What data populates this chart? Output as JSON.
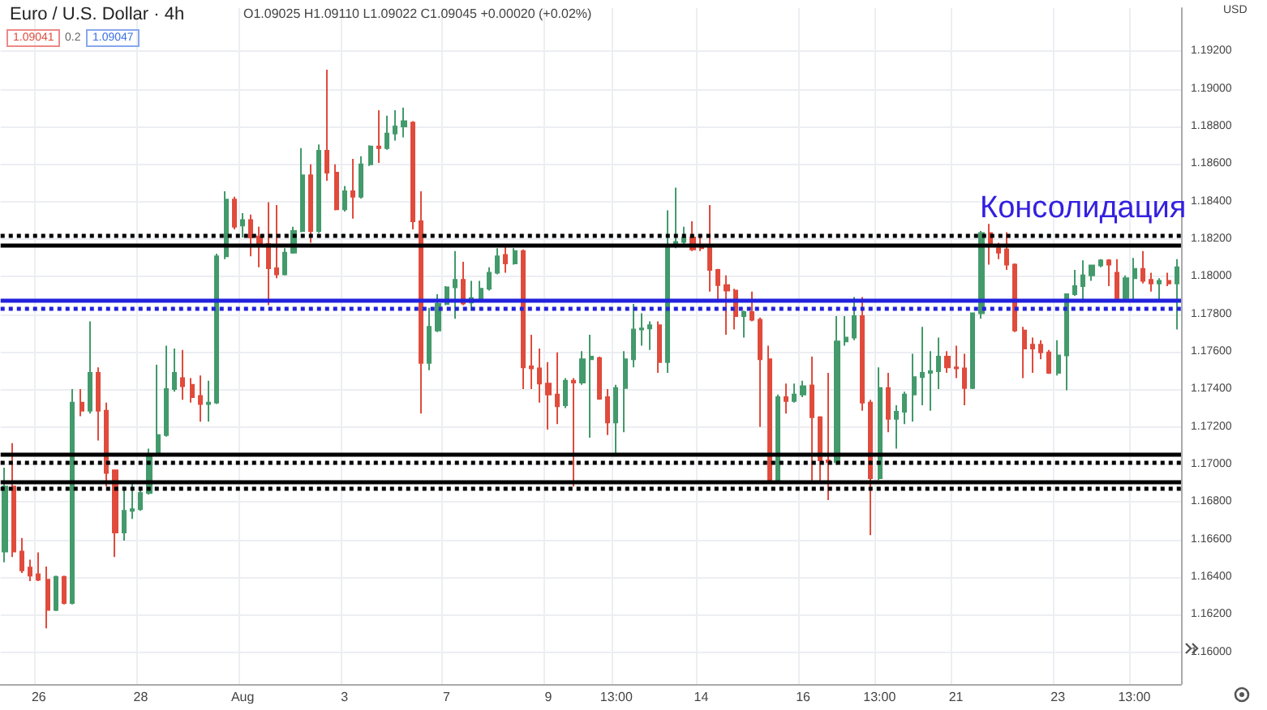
{
  "chart_data": {
    "type": "candlestick",
    "title": "Euro / U.S. Dollar · 4h",
    "subtitle": "O1.09025 H1.09110 L1.09022 C1.09045 +0.00020 (+0.02%)",
    "annotations": [
      "1.09041",
      "0.2",
      "1.09047",
      "USD",
      "Консолидация"
    ],
    "categories": [
      null,
      null,
      null,
      null,
      "26",
      null,
      null,
      null,
      null,
      null,
      null,
      null,
      null,
      null,
      null,
      null,
      "28",
      null,
      null,
      null,
      null,
      null,
      null,
      null,
      null,
      null,
      null,
      null,
      "Aug",
      null,
      null,
      null,
      null,
      null,
      null,
      null,
      null,
      null,
      null,
      null,
      "3",
      null,
      null,
      null,
      null,
      null,
      null,
      null,
      null,
      null,
      null,
      null,
      "7",
      null,
      null,
      null,
      null,
      null,
      null,
      null,
      null,
      null,
      null,
      null,
      "9",
      null,
      null,
      null,
      null,
      null,
      null,
      null,
      "13:00",
      null,
      null,
      null,
      null,
      null,
      null,
      null,
      null,
      null,
      "14",
      null,
      null,
      null,
      null,
      null,
      null,
      null,
      null,
      null,
      null,
      null,
      "16",
      null,
      null,
      null,
      null,
      null,
      null,
      null,
      null,
      "13:00",
      null,
      null,
      null,
      null,
      null,
      null,
      null,
      null,
      "21",
      null,
      null,
      null,
      null,
      null,
      null,
      null,
      null,
      null,
      null,
      null,
      "23",
      null,
      null,
      null,
      null,
      null,
      null,
      null,
      null,
      "13:00",
      null,
      null,
      null,
      null,
      null
    ],
    "ohlc": [
      [
        1.16536,
        1.16983,
        1.16479,
        1.16882
      ],
      [
        1.16882,
        1.17113,
        1.16507,
        1.16536
      ],
      [
        1.16536,
        1.16608,
        1.16421,
        1.16435
      ],
      [
        1.1645,
        1.16493,
        1.16378,
        1.16407
      ],
      [
        1.16415,
        1.16531,
        1.16378,
        1.16386
      ],
      [
        1.16386,
        1.16456,
        1.16127,
        1.16225
      ],
      [
        1.16225,
        1.16407,
        1.16219,
        1.16401
      ],
      [
        1.16401,
        1.16407,
        1.16254,
        1.16262
      ],
      [
        1.16262,
        1.17401,
        1.16254,
        1.17329
      ],
      [
        1.17329,
        1.17401,
        1.17257,
        1.17286
      ],
      [
        1.17286,
        1.17762,
        1.17271,
        1.17488
      ],
      [
        1.17488,
        1.17517,
        1.17127,
        1.17286
      ],
      [
        1.17286,
        1.17329,
        1.16882,
        1.16954
      ],
      [
        1.16969,
        1.16969,
        1.16507,
        1.16637
      ],
      [
        1.16637,
        1.16882,
        1.16594,
        1.16753
      ],
      [
        1.16753,
        1.16911,
        1.16709,
        1.16761
      ],
      [
        1.16761,
        1.16882,
        1.16753,
        1.16848
      ],
      [
        1.16848,
        1.17084,
        1.16839,
        1.17055
      ],
      [
        1.17055,
        1.17531,
        1.17047,
        1.17156
      ],
      [
        1.17156,
        1.17632,
        1.17148,
        1.17401
      ],
      [
        1.17401,
        1.17617,
        1.17387,
        1.17488
      ],
      [
        1.17459,
        1.17609,
        1.17344,
        1.17416
      ],
      [
        1.17424,
        1.17459,
        1.17329,
        1.17358
      ],
      [
        1.17364,
        1.17473,
        1.17228,
        1.17321
      ],
      [
        1.17321,
        1.17445,
        1.17228,
        1.17329
      ],
      [
        1.17329,
        1.18122,
        1.17321,
        1.18108
      ],
      [
        1.18108,
        1.18454,
        1.18093,
        1.1841
      ],
      [
        1.1841,
        1.18425,
        1.18252,
        1.18266
      ],
      [
        1.18272,
        1.18338,
        1.18208,
        1.18301
      ],
      [
        1.18301,
        1.1833,
        1.18108,
        1.18208
      ],
      [
        1.18214,
        1.18266,
        1.1805,
        1.18171
      ],
      [
        1.18174,
        1.18396,
        1.17848,
        1.18044
      ],
      [
        1.18044,
        1.18381,
        1.17992,
        1.18012
      ],
      [
        1.18012,
        1.18151,
        1.18007,
        1.18128
      ],
      [
        1.18128,
        1.18266,
        1.18122,
        1.18243
      ],
      [
        1.18243,
        1.18684,
        1.18237,
        1.1854
      ],
      [
        1.1854,
        1.18598,
        1.1818,
        1.18243
      ],
      [
        1.18243,
        1.18704,
        1.18232,
        1.1867
      ],
      [
        1.1867,
        1.19102,
        1.18511,
        1.18554
      ],
      [
        1.18554,
        1.18598,
        1.18353,
        1.18358
      ],
      [
        1.18358,
        1.18482,
        1.18347,
        1.18454
      ],
      [
        1.18454,
        1.18627,
        1.18309,
        1.18425
      ],
      [
        1.18425,
        1.18641,
        1.18416,
        1.18598
      ],
      [
        1.18598,
        1.18699,
        1.18589,
        1.18693
      ],
      [
        1.18693,
        1.18886,
        1.18606,
        1.18684
      ],
      [
        1.18684,
        1.18857,
        1.18676,
        1.18762
      ],
      [
        1.18762,
        1.18886,
        1.18724,
        1.188
      ],
      [
        1.188,
        1.189,
        1.18742,
        1.18828
      ],
      [
        1.1882,
        1.18828,
        1.18252,
        1.18295
      ],
      [
        1.18295,
        1.18454,
        1.17271,
        1.1754
      ],
      [
        1.1754,
        1.17834,
        1.17502,
        1.17733
      ],
      [
        1.17713,
        1.17906,
        1.17704,
        1.17854
      ],
      [
        1.17854,
        1.17949,
        1.17848,
        1.17943
      ],
      [
        1.17943,
        1.18136,
        1.17776,
        1.17983
      ],
      [
        1.17983,
        1.18079,
        1.17848,
        1.17857
      ],
      [
        1.17862,
        1.17978,
        1.17819,
        1.17886
      ],
      [
        1.17877,
        1.17978,
        1.17868,
        1.17935
      ],
      [
        1.17935,
        1.1805,
        1.17926,
        1.18021
      ],
      [
        1.18021,
        1.18151,
        1.18012,
        1.18108
      ],
      [
        1.18116,
        1.18165,
        1.18021,
        1.1807
      ],
      [
        1.1807,
        1.18151,
        1.18064,
        1.18136
      ],
      [
        1.18136,
        1.18145,
        1.17401,
        1.17517
      ],
      [
        1.17522,
        1.1769,
        1.17401,
        1.17511
      ],
      [
        1.17511,
        1.17617,
        1.17329,
        1.1743
      ],
      [
        1.1743,
        1.17545,
        1.17185,
        1.17372
      ],
      [
        1.17372,
        1.17597,
        1.17214,
        1.17309
      ],
      [
        1.17315,
        1.17459,
        1.173,
        1.17445
      ],
      [
        1.17445,
        1.17459,
        1.16882,
        1.17436
      ],
      [
        1.17436,
        1.17603,
        1.17424,
        1.1756
      ],
      [
        1.1756,
        1.1769,
        1.17142,
        1.17574
      ],
      [
        1.17566,
        1.17574,
        1.17344,
        1.17349
      ],
      [
        1.17358,
        1.17401,
        1.17156,
        1.17223
      ],
      [
        1.17223,
        1.17424,
        1.17055,
        1.17407
      ],
      [
        1.17407,
        1.17603,
        1.17171,
        1.1756
      ],
      [
        1.1756,
        1.17854,
        1.17517,
        1.17718
      ],
      [
        1.17718,
        1.17805,
        1.17632,
        1.17724
      ],
      [
        1.17724,
        1.17762,
        1.17609,
        1.17741
      ],
      [
        1.17741,
        1.17762,
        1.17488,
        1.17545
      ],
      [
        1.17545,
        1.18353,
        1.17488,
        1.18165
      ],
      [
        1.18165,
        1.18474,
        1.18151,
        1.18185
      ],
      [
        1.18185,
        1.18266,
        1.18174,
        1.18208
      ],
      [
        1.18208,
        1.18295,
        1.18136,
        1.18145
      ],
      [
        1.18165,
        1.18223,
        1.18136,
        1.18151
      ],
      [
        1.18165,
        1.18381,
        1.1792,
        1.18036
      ],
      [
        1.18036,
        1.18041,
        1.17862,
        1.17955
      ],
      [
        1.17955,
        1.18007,
        1.1769,
        1.17926
      ],
      [
        1.17926,
        1.17935,
        1.17718,
        1.1779
      ],
      [
        1.1779,
        1.17819,
        1.17675,
        1.17811
      ],
      [
        1.17811,
        1.1792,
        1.17762,
        1.1777
      ],
      [
        1.1777,
        1.17782,
        1.17199,
        1.1756
      ],
      [
        1.1756,
        1.17632,
        1.16905,
        1.16911
      ],
      [
        1.16911,
        1.17372,
        1.16905,
        1.17358
      ],
      [
        1.17358,
        1.1743,
        1.17271,
        1.17338
      ],
      [
        1.17338,
        1.1743,
        1.17329,
        1.17372
      ],
      [
        1.17372,
        1.17445,
        1.17358,
        1.17416
      ],
      [
        1.17421,
        1.17574,
        1.16911,
        1.17251
      ],
      [
        1.17251,
        1.17257,
        1.16911,
        1.17021
      ],
      [
        1.17021,
        1.17488,
        1.1681,
        1.17012
      ],
      [
        1.17012,
        1.1779,
        1.16998,
        1.17655
      ],
      [
        1.17655,
        1.1779,
        1.17632,
        1.17675
      ],
      [
        1.17675,
        1.17891,
        1.17661,
        1.1779
      ],
      [
        1.1779,
        1.17891,
        1.17286,
        1.17329
      ],
      [
        1.17329,
        1.17344,
        1.16623,
        1.16926
      ],
      [
        1.16926,
        1.17517,
        1.16917,
        1.17407
      ],
      [
        1.17407,
        1.17488,
        1.17171,
        1.17243
      ],
      [
        1.17243,
        1.17315,
        1.17084,
        1.1728
      ],
      [
        1.1728,
        1.17387,
        1.17214,
        1.17372
      ],
      [
        1.17372,
        1.17589,
        1.17228,
        1.17465
      ],
      [
        1.17465,
        1.17733,
        1.17315,
        1.17488
      ],
      [
        1.17488,
        1.17603,
        1.17286,
        1.17496
      ],
      [
        1.17496,
        1.17675,
        1.17401,
        1.17574
      ],
      [
        1.17574,
        1.17603,
        1.17488,
        1.17517
      ],
      [
        1.17517,
        1.17632,
        1.17459,
        1.17511
      ],
      [
        1.17511,
        1.17589,
        1.17315,
        1.17407
      ],
      [
        1.17407,
        1.17805,
        1.17401,
        1.17805
      ],
      [
        1.17805,
        1.18243,
        1.17776,
        1.18232
      ],
      [
        1.18232,
        1.18281,
        1.18064,
        1.18165
      ],
      [
        1.18151,
        1.1818,
        1.18093,
        1.18128
      ],
      [
        1.18145,
        1.18237,
        1.18036,
        1.18064
      ],
      [
        1.18064,
        1.1807,
        1.17704,
        1.17713
      ],
      [
        1.17713,
        1.17733,
        1.17459,
        1.17617
      ],
      [
        1.17638,
        1.17675,
        1.17488,
        1.17617
      ],
      [
        1.17638,
        1.17661,
        1.1756,
        1.17597
      ],
      [
        1.17597,
        1.17609,
        1.17482,
        1.17488
      ],
      [
        1.17488,
        1.17661,
        1.17473,
        1.1758
      ],
      [
        1.1758,
        1.17906,
        1.17395,
        1.17906
      ],
      [
        1.17906,
        1.18036,
        1.17898,
        1.17949
      ],
      [
        1.17949,
        1.18087,
        1.17862,
        1.18007
      ],
      [
        1.18007,
        1.18064,
        1.17978,
        1.18059
      ],
      [
        1.18059,
        1.18093,
        1.1805,
        1.18087
      ],
      [
        1.18087,
        1.18093,
        1.17949,
        1.18064
      ],
      [
        1.18021,
        1.18093,
        1.17877,
        1.17886
      ],
      [
        1.17886,
        1.18007,
        1.17877,
        1.17992
      ],
      [
        1.17992,
        1.18099,
        1.17877,
        1.18041
      ],
      [
        1.18041,
        1.18136,
        1.17963,
        1.17978
      ],
      [
        1.17983,
        1.18021,
        1.1792,
        1.17963
      ],
      [
        1.17963,
        1.17992,
        1.17877,
        1.17978
      ],
      [
        1.17978,
        1.18021,
        1.17949,
        1.17963
      ],
      [
        1.17963,
        1.18093,
        1.17718,
        1.1805
      ]
    ],
    "colors": [
      "#439a6b",
      "#e04b3c",
      "#e04b3c",
      "#e04b3c",
      "#e04b3c",
      "#e04b3c",
      "#439a6b",
      "#e04b3c",
      "#439a6b",
      "#e04b3c",
      "#439a6b",
      "#e04b3c",
      "#e04b3c",
      "#e04b3c",
      "#439a6b",
      "#439a6b",
      "#439a6b",
      "#439a6b",
      "#439a6b",
      "#439a6b",
      "#439a6b",
      "#e04b3c",
      "#e04b3c",
      "#e04b3c",
      "#439a6b",
      "#439a6b",
      "#439a6b",
      "#e04b3c",
      "#439a6b",
      "#e04b3c",
      "#e04b3c",
      "#e04b3c",
      "#e04b3c",
      "#439a6b",
      "#439a6b",
      "#439a6b",
      "#e04b3c",
      "#439a6b",
      "#e04b3c",
      "#e04b3c",
      "#439a6b",
      "#e04b3c",
      "#439a6b",
      "#439a6b",
      "#e04b3c",
      "#439a6b",
      "#439a6b",
      "#439a6b",
      "#e04b3c",
      "#e04b3c",
      "#439a6b",
      "#439a6b",
      "#439a6b",
      "#439a6b",
      "#e04b3c",
      "#439a6b",
      "#439a6b",
      "#439a6b",
      "#439a6b",
      "#e04b3c",
      "#439a6b",
      "#e04b3c",
      "#e04b3c",
      "#e04b3c",
      "#e04b3c",
      "#e04b3c",
      "#439a6b",
      "#e04b3c",
      "#439a6b",
      "#439a6b",
      "#e04b3c",
      "#e04b3c",
      "#439a6b",
      "#439a6b",
      "#439a6b",
      "#439a6b",
      "#439a6b",
      "#e04b3c",
      "#439a6b",
      "#439a6b",
      "#439a6b",
      "#e04b3c",
      "#e04b3c",
      "#e04b3c",
      "#e04b3c",
      "#e04b3c",
      "#e04b3c",
      "#439a6b",
      "#e04b3c",
      "#e04b3c",
      "#e04b3c",
      "#439a6b",
      "#e04b3c",
      "#439a6b",
      "#439a6b",
      "#e04b3c",
      "#e04b3c",
      "#e04b3c",
      "#439a6b",
      "#439a6b",
      "#439a6b",
      "#e04b3c",
      "#e04b3c",
      "#439a6b",
      "#e04b3c",
      "#439a6b",
      "#439a6b",
      "#439a6b",
      "#439a6b",
      "#439a6b",
      "#439a6b",
      "#e04b3c",
      "#e04b3c",
      "#e04b3c",
      "#439a6b",
      "#439a6b",
      "#e04b3c",
      "#e04b3c",
      "#e04b3c",
      "#e04b3c",
      "#e04b3c",
      "#e04b3c",
      "#e04b3c",
      "#e04b3c",
      "#439a6b",
      "#439a6b",
      "#439a6b",
      "#439a6b",
      "#439a6b",
      "#439a6b",
      "#e04b3c",
      "#e04b3c",
      "#439a6b",
      "#439a6b",
      "#e04b3c",
      "#e04b3c",
      "#439a6b",
      "#e04b3c",
      "#439a6b"
    ],
    "ylim": [
      1.1583,
      1.1943
    ],
    "yticks": [
      {
        "value": 1.16,
        "label": "1.16000"
      },
      {
        "value": 1.162,
        "label": "1.16200"
      },
      {
        "value": 1.164,
        "label": "1.16400"
      },
      {
        "value": 1.166,
        "label": "1.16600"
      },
      {
        "value": 1.168,
        "label": "1.16800"
      },
      {
        "value": 1.17,
        "label": "1.17000"
      },
      {
        "value": 1.172,
        "label": "1.17200"
      },
      {
        "value": 1.174,
        "label": "1.17400"
      },
      {
        "value": 1.176,
        "label": "1.17600"
      },
      {
        "value": 1.178,
        "label": "1.17800"
      },
      {
        "value": 1.18,
        "label": "1.18000"
      },
      {
        "value": 1.182,
        "label": "1.18200"
      },
      {
        "value": 1.184,
        "label": "1.18400"
      },
      {
        "value": 1.186,
        "label": "1.18600"
      },
      {
        "value": 1.188,
        "label": "1.18800"
      },
      {
        "value": 1.19,
        "label": "1.19000"
      },
      {
        "value": 1.192,
        "label": "1.19200"
      }
    ],
    "grid": true,
    "ref_lines": [
      {
        "axis": "y",
        "value": 1.1822,
        "color": "#000000",
        "line_style": "dotted"
      },
      {
        "axis": "y",
        "value": 1.1817,
        "color": "#000000",
        "line_style": "solid"
      },
      {
        "axis": "y",
        "value": 1.1705,
        "color": "#000000",
        "line_style": "solid"
      },
      {
        "axis": "y",
        "value": 1.1701,
        "color": "#000000",
        "line_style": "dotted"
      },
      {
        "axis": "y",
        "value": 1.1691,
        "color": "#000000",
        "line_style": "solid"
      },
      {
        "axis": "y",
        "value": 1.1687,
        "color": "#000000",
        "line_style": "dotted"
      },
      {
        "axis": "y",
        "value": 1.1787,
        "color": "#2222dd",
        "line_style": "solid"
      },
      {
        "axis": "y",
        "value": 1.1783,
        "color": "#2222dd",
        "line_style": "dotted"
      }
    ]
  }
}
